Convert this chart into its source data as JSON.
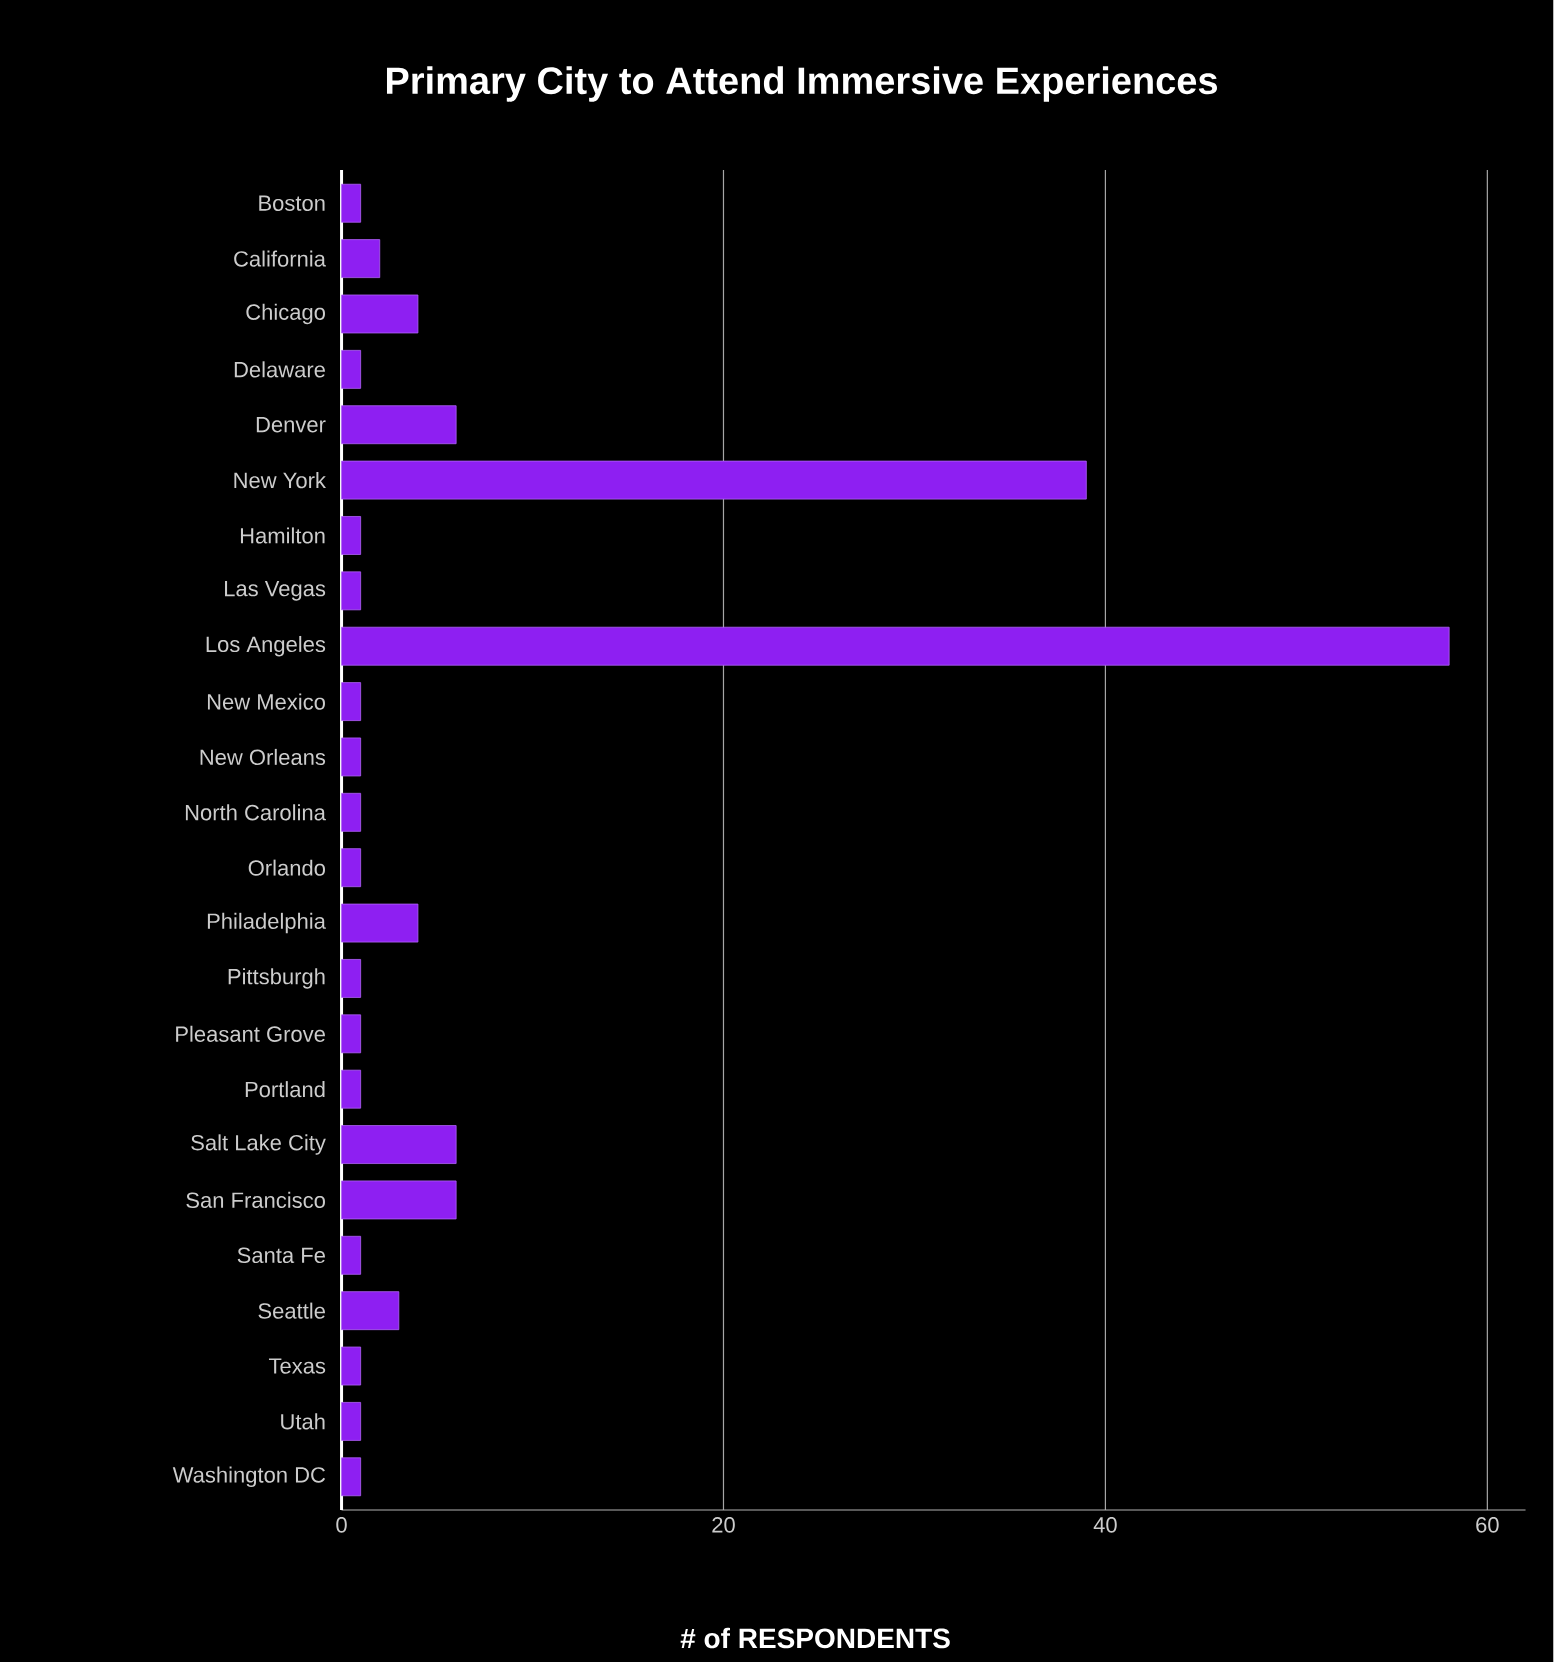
{
  "chart_data": {
    "type": "bar",
    "orientation": "horizontal",
    "title": "Primary City to Attend Immersive Experiences",
    "xlabel": "# of RESPONDENTS",
    "categories": [
      "Boston",
      "California",
      "Chicago",
      "Delaware",
      "Denver",
      "New York",
      "Hamilton",
      "Las Vegas",
      "Los Angeles",
      "New Mexico",
      "New Orleans",
      "North Carolina",
      "Orlando",
      "Philadelphia",
      "Pittsburgh",
      "Pleasant Grove",
      "Portland",
      "Salt Lake City",
      "San Francisco",
      "Santa Fe",
      "Seattle",
      "Texas",
      "Utah",
      "Washington DC"
    ],
    "values": [
      1,
      2,
      4,
      1,
      6,
      39,
      1,
      1,
      58,
      1,
      1,
      1,
      1,
      4,
      1,
      1,
      1,
      6,
      6,
      1,
      3,
      1,
      1,
      1
    ],
    "color": "#8e1ff2",
    "xlim": [
      0,
      62
    ],
    "xticks": [
      0,
      20,
      40,
      60
    ],
    "grid": "x"
  }
}
